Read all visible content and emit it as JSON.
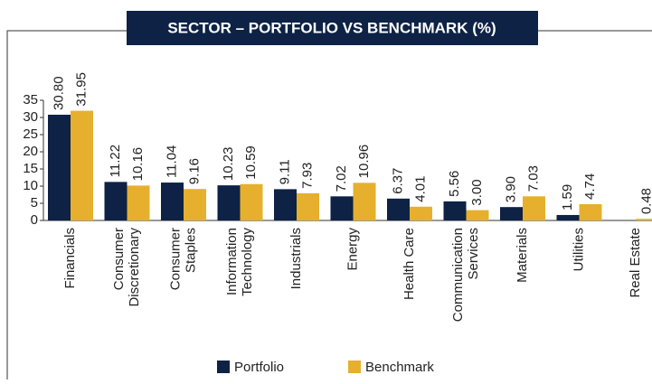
{
  "chart_data": {
    "type": "bar",
    "title": "SECTOR – PORTFOLIO VS BENCHMARK (%)",
    "categories": [
      "Financials",
      "Consumer\nDiscretionary",
      "Consumer\nStaples",
      "Information\nTechnology",
      "Industrials",
      "Energy",
      "Health Care",
      "Communication\nServices",
      "Materials",
      "Utilities",
      "Real Estate"
    ],
    "series": [
      {
        "name": "Portfolio",
        "color": "#0d2245",
        "values": [
          30.8,
          11.22,
          11.04,
          10.23,
          9.11,
          7.02,
          6.37,
          5.56,
          3.9,
          1.59,
          null
        ],
        "value_labels": [
          "30.80",
          "11.22",
          "11.04",
          "10.23",
          "9.11",
          "7.02",
          "6.37",
          "5.56",
          "3.90",
          "1.59",
          null
        ]
      },
      {
        "name": "Benchmark",
        "color": "#e6b02e",
        "values": [
          31.95,
          10.16,
          9.16,
          10.59,
          7.93,
          10.96,
          4.01,
          3.0,
          7.03,
          4.74,
          0.48
        ],
        "value_labels": [
          "31.95",
          "10.16",
          "9.16",
          "10.59",
          "7.93",
          "10.96",
          "4.01",
          "3.00",
          "7.03",
          "4.74",
          "0.48"
        ]
      }
    ],
    "ylim": [
      0,
      35
    ],
    "yticks": [
      0,
      5,
      10,
      15,
      20,
      25,
      30,
      35
    ]
  }
}
